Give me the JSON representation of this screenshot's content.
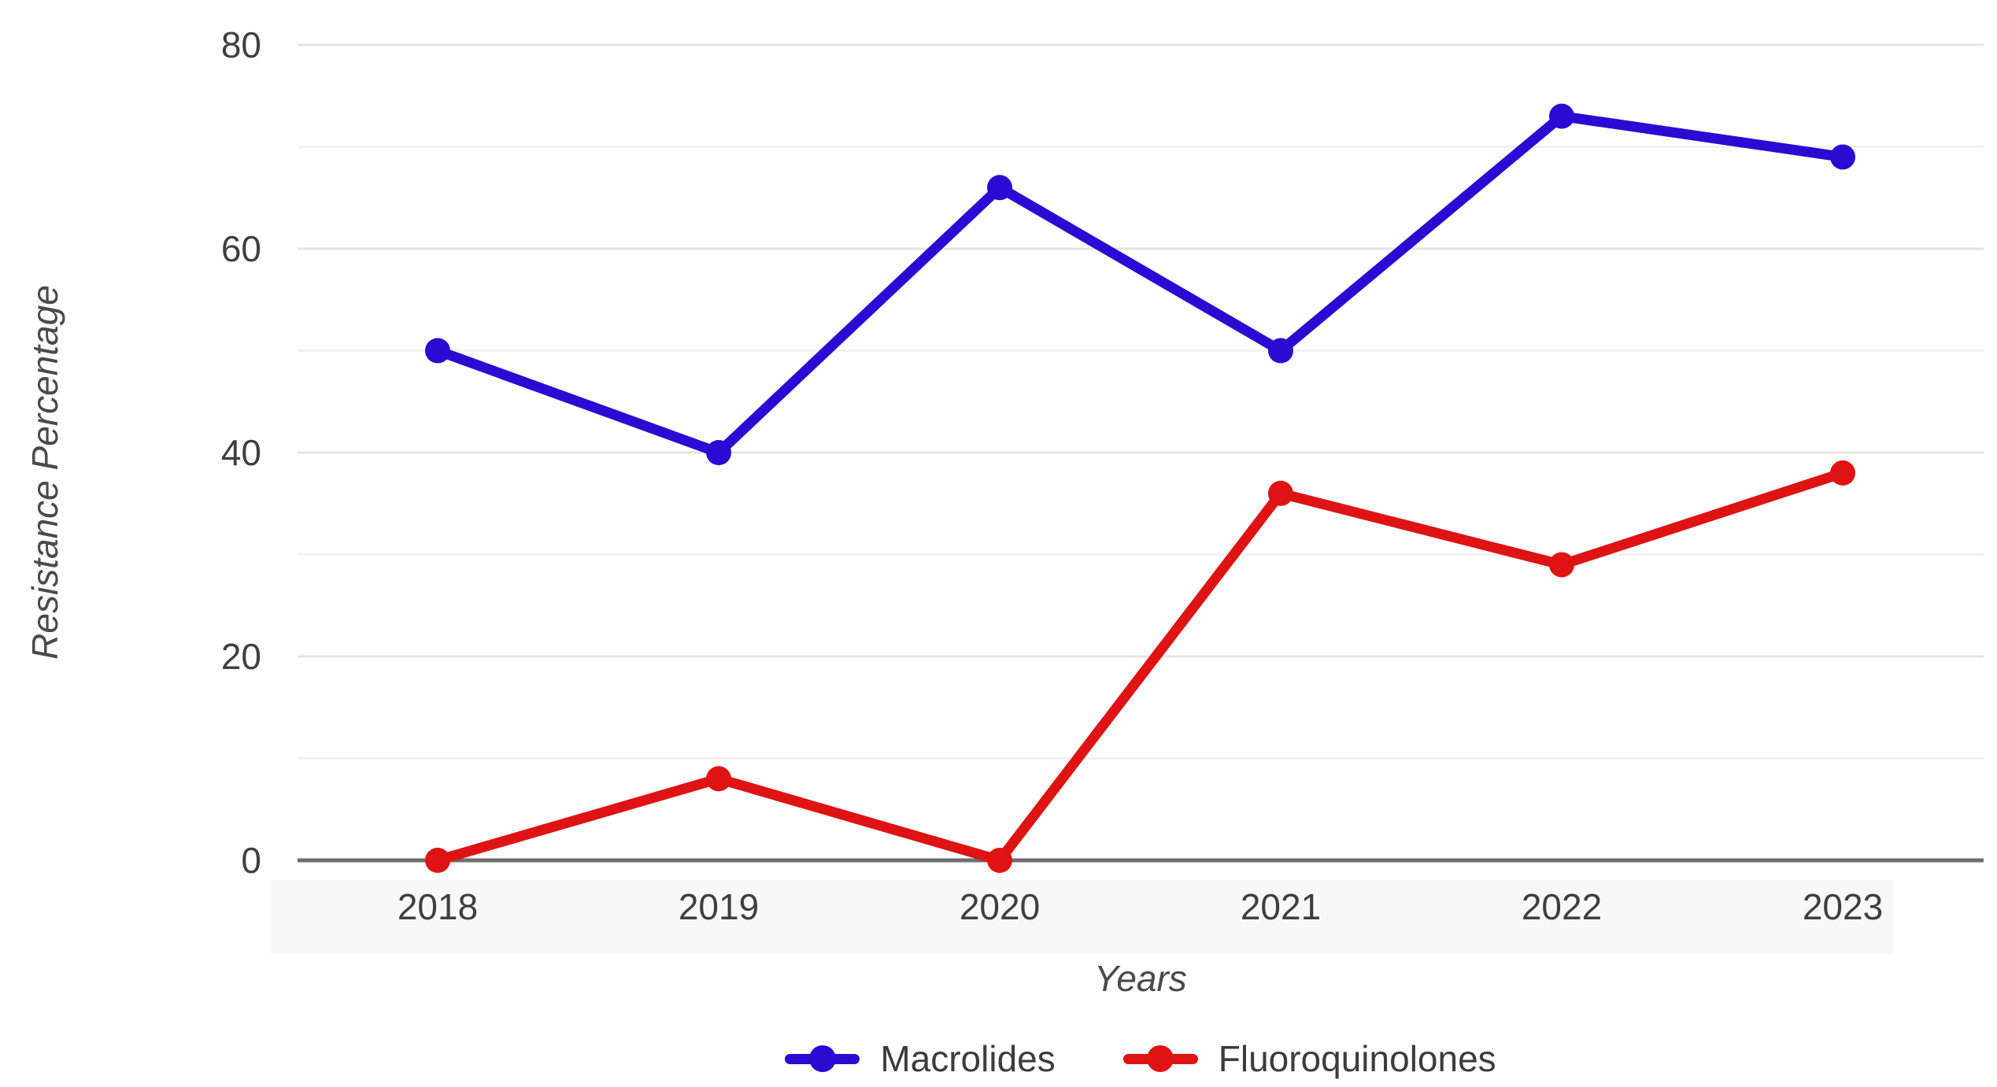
{
  "chart_data": {
    "type": "line",
    "categories": [
      "2018",
      "2019",
      "2020",
      "2021",
      "2022",
      "2023"
    ],
    "series": [
      {
        "name": "Macrolides",
        "color": "#2a0bd3",
        "values": [
          50,
          40,
          66,
          50,
          73,
          69
        ]
      },
      {
        "name": "Fluoroquinolones",
        "color": "#df1313",
        "values": [
          0,
          8,
          0,
          36,
          29,
          38
        ]
      }
    ],
    "title": "",
    "xlabel": "Years",
    "ylabel": "Resistance Percentage",
    "ylim": [
      0,
      80
    ],
    "y_major_ticks": [
      0,
      20,
      40,
      60,
      80
    ],
    "y_minor_step": 10,
    "grid": true,
    "legend_position": "bottom",
    "colors": {
      "axis_line": "#6e6e6e",
      "grid_major": "#e4e4e4",
      "grid_minor": "#f2f2f2",
      "tick_label": "#3f3f3f",
      "x_label_band": "#f8f8f8"
    }
  }
}
